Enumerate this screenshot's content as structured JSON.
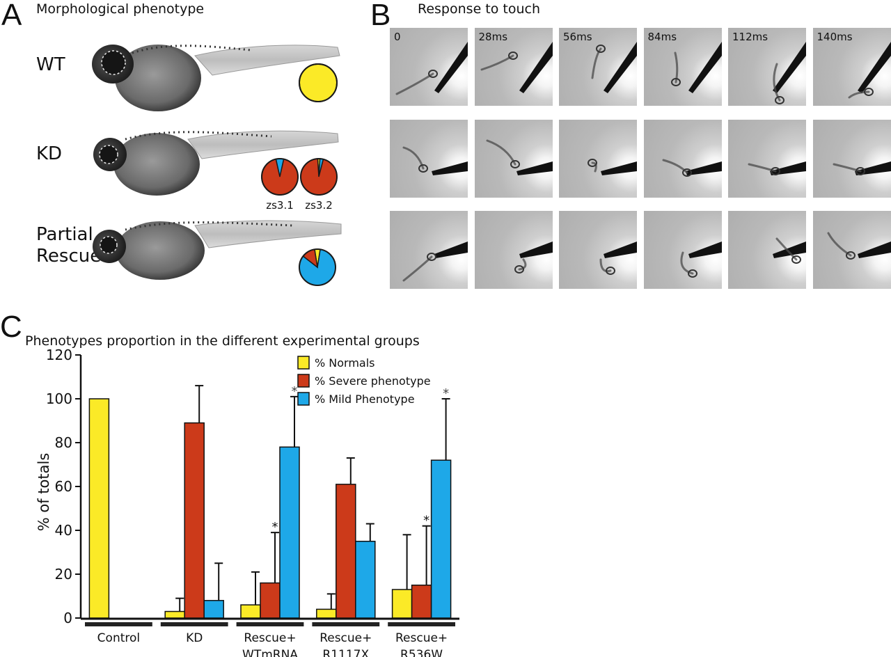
{
  "panel_a": {
    "letter": "A",
    "title": "Morphological phenotype",
    "rows": [
      {
        "label": "WT",
        "pies": [
          {
            "caption": "",
            "normal": 100,
            "severe": 0,
            "mild": 0
          }
        ]
      },
      {
        "label": "KD",
        "pies": [
          {
            "caption": "zs3.1",
            "normal": 0,
            "severe": 93,
            "mild": 7
          },
          {
            "caption": "zs3.2",
            "normal": 2,
            "severe": 95,
            "mild": 3
          }
        ]
      },
      {
        "label": "Partial\nRescue",
        "pies": [
          {
            "caption": "",
            "normal": 5,
            "severe": 12,
            "mild": 83
          }
        ]
      }
    ]
  },
  "panel_b": {
    "letter": "B",
    "title": "Response to touch",
    "time_labels": [
      "0",
      "28ms",
      "56ms",
      "84ms",
      "112ms",
      "140ms"
    ],
    "rows": 3
  },
  "panel_c": {
    "letter": "C",
    "title": "Phenotypes proportion in the different experimental groups"
  },
  "colors": {
    "normal": "#fbea27",
    "severe": "#cc3a1a",
    "mild": "#1ea8e8",
    "outline": "#1a1a1a"
  },
  "chart_data": {
    "type": "bar",
    "title": "Phenotypes proportion in the different experimental groups",
    "ylabel": "% of   totals",
    "xlabel": "",
    "ylim": [
      0,
      120
    ],
    "yticks": [
      0,
      20,
      40,
      60,
      80,
      100,
      120
    ],
    "categories": [
      "Control",
      "KD",
      "Rescue+\nWTmRNA",
      "Rescue+\nR1117X",
      "Rescue+\nR536W"
    ],
    "series": [
      {
        "name": "%  Normals",
        "color": "#fbea27",
        "values": [
          100,
          3,
          6,
          4,
          13
        ],
        "errors": [
          0,
          6,
          15,
          7,
          25
        ],
        "significant": [
          false,
          false,
          false,
          false,
          false
        ]
      },
      {
        "name": "%  Severe phenotype",
        "color": "#cc3a1a",
        "values": [
          0,
          89,
          16,
          61,
          15
        ],
        "errors": [
          0,
          17,
          23,
          12,
          27
        ],
        "significant": [
          false,
          false,
          true,
          false,
          true
        ]
      },
      {
        "name": "%  Mild Phenotype",
        "color": "#1ea8e8",
        "values": [
          0,
          8,
          78,
          35,
          72
        ],
        "errors": [
          0,
          17,
          23,
          8,
          28
        ],
        "significant": [
          false,
          false,
          true,
          false,
          true
        ]
      }
    ],
    "significance_marker": "*",
    "legend": "top-right",
    "grid": false
  }
}
